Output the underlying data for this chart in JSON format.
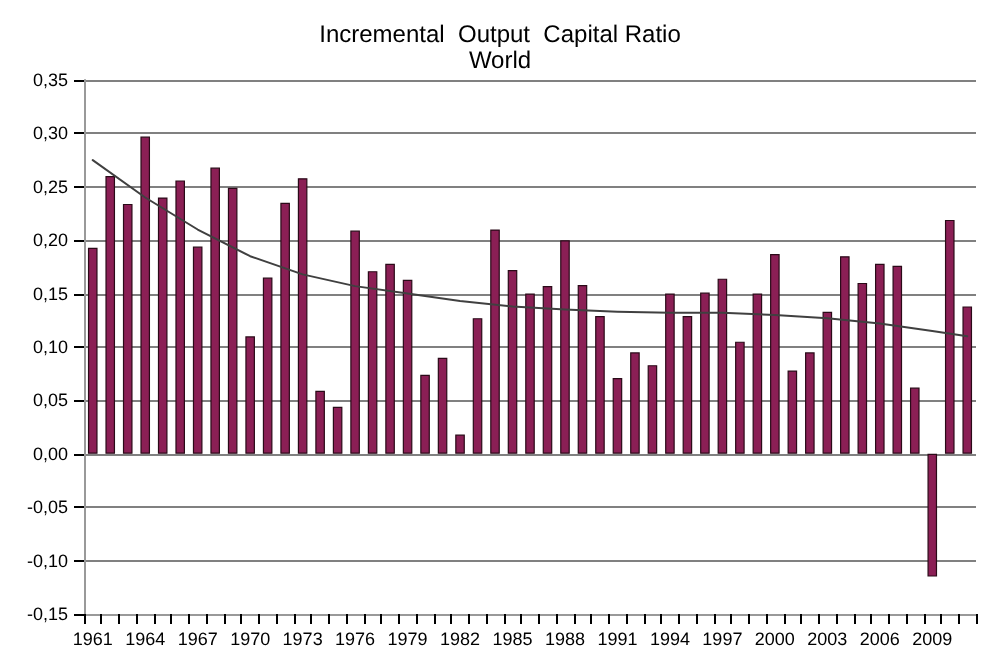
{
  "chart_data": {
    "type": "bar",
    "title": "Incremental  Output  Capital Ratio",
    "subtitle": "World",
    "categories": [
      "1961",
      null,
      null,
      "1964",
      null,
      null,
      "1967",
      null,
      null,
      "1970",
      null,
      null,
      "1973",
      null,
      null,
      "1976",
      null,
      null,
      "1979",
      null,
      null,
      "1982",
      null,
      null,
      "1985",
      null,
      null,
      "1988",
      null,
      null,
      "1991",
      null,
      null,
      "1994",
      null,
      null,
      "1997",
      null,
      null,
      "2000",
      null,
      null,
      "2003",
      null,
      null,
      "2006",
      null,
      null,
      "2009",
      null,
      null
    ],
    "series": [
      {
        "color": "#8b1f55",
        "values": [
          0.193,
          0.26,
          0.234,
          0.297,
          0.24,
          0.256,
          0.194,
          0.268,
          0.249,
          0.11,
          0.165,
          0.235,
          0.258,
          0.059,
          0.044,
          0.209,
          0.171,
          0.178,
          0.163,
          0.074,
          0.09,
          0.018,
          0.127,
          0.21,
          0.172,
          0.15,
          0.157,
          0.2,
          0.158,
          0.129,
          0.071,
          0.095,
          0.083,
          0.15,
          0.129,
          0.151,
          0.164,
          0.105,
          0.15,
          0.187,
          0.078,
          0.095,
          0.133,
          0.185,
          0.16,
          0.178,
          0.176,
          0.062,
          -0.115,
          0.219,
          0.138
        ]
      },
      {
        "type": "line",
        "color": "#404040",
        "values": [
          0.275,
          null,
          null,
          0.24,
          null,
          null,
          0.21,
          null,
          null,
          0.185,
          null,
          null,
          0.168,
          null,
          null,
          0.157,
          null,
          null,
          0.15,
          null,
          null,
          0.143,
          null,
          null,
          0.138,
          null,
          null,
          0.135,
          null,
          null,
          0.133,
          null,
          null,
          0.132,
          null,
          null,
          0.132,
          null,
          null,
          0.13,
          null,
          null,
          0.127,
          null,
          null,
          0.122,
          null,
          null,
          0.115,
          null,
          0.11
        ]
      }
    ],
    "ylim": [
      -0.15,
      0.35
    ],
    "yticks": [
      {
        "value": -0.15,
        "label": "-0,15"
      },
      {
        "value": -0.1,
        "label": "-0,10"
      },
      {
        "value": -0.05,
        "label": "-0,05"
      },
      {
        "value": 0,
        "label": "0,00"
      },
      {
        "value": 0.05,
        "label": "0,05"
      },
      {
        "value": 0.1,
        "label": "0,10"
      },
      {
        "value": 0.15,
        "label": "0,15"
      },
      {
        "value": 0.2,
        "label": "0,20"
      },
      {
        "value": 0.25,
        "label": "0,25"
      },
      {
        "value": 0.3,
        "label": "0,30"
      },
      {
        "value": 0.35,
        "label": "0,35"
      }
    ],
    "grid": "y",
    "marker": "none",
    "line_style": "solid"
  }
}
